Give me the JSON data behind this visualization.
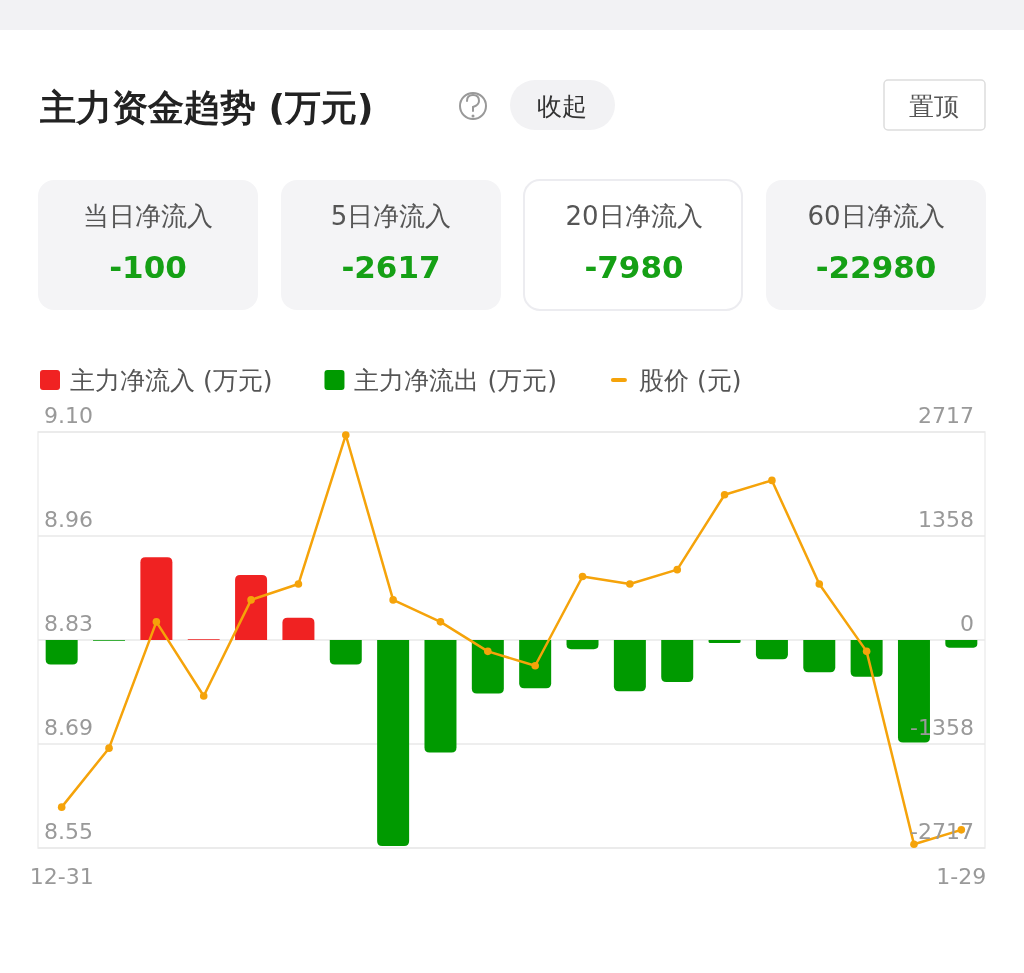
{
  "chart_data": {
    "type": "bar",
    "title": "主力资金趋势 (万元)",
    "annotations": [
      "收起",
      "置顶",
      "当日净流入",
      "-100",
      "5日净流入",
      "-2617",
      "20日净流入",
      "-7980",
      "60日净流入",
      "-22980"
    ],
    "categories": [
      "12-31",
      null,
      null,
      null,
      null,
      null,
      null,
      null,
      null,
      null,
      null,
      null,
      null,
      null,
      null,
      null,
      null,
      null,
      null,
      "1-29"
    ],
    "series": [
      {
        "name": "主力净流入 (万元)",
        "color": "#f02222",
        "axis": "y2",
        "values": [
          null,
          null,
          1080,
          10,
          850,
          290,
          null,
          null,
          null,
          null,
          null,
          null,
          null,
          null,
          null,
          null,
          null,
          null,
          null,
          null
        ]
      },
      {
        "name": "主力净流出 (万元)",
        "color": "#009a00",
        "axis": "y2",
        "values": [
          -320,
          -10,
          null,
          null,
          null,
          null,
          -320,
          -2690,
          -1470,
          -700,
          -630,
          -120,
          -670,
          -550,
          -40,
          -250,
          -420,
          -480,
          -1340,
          -100
        ]
      },
      {
        "name": "股价 (元)",
        "type": "line",
        "color": "#f5a30a",
        "values": [
          8.604,
          8.682,
          8.849,
          8.751,
          8.878,
          8.899,
          9.096,
          8.878,
          8.849,
          8.81,
          8.791,
          8.909,
          8.899,
          8.918,
          9.017,
          9.036,
          8.899,
          8.81,
          8.555,
          8.574
        ]
      }
    ],
    "ylim": [
      8.55,
      9.1
    ],
    "yticks": [
      {
        "value": 8.55,
        "label": "8.55"
      },
      {
        "value": 8.6875,
        "label": "8.69"
      },
      {
        "value": 8.825,
        "label": "8.83"
      },
      {
        "value": 8.9625,
        "label": "8.96"
      },
      {
        "value": 9.1,
        "label": "9.10"
      }
    ],
    "y2lim": [
      -2717,
      2717
    ],
    "y2ticks": [
      -2717,
      {
        "value": -1358.5,
        "label": "-1358"
      },
      0,
      {
        "value": 1358.5,
        "label": "1358"
      },
      2717
    ],
    "grid": "y",
    "legend": "top left",
    "marker": "circle"
  }
}
